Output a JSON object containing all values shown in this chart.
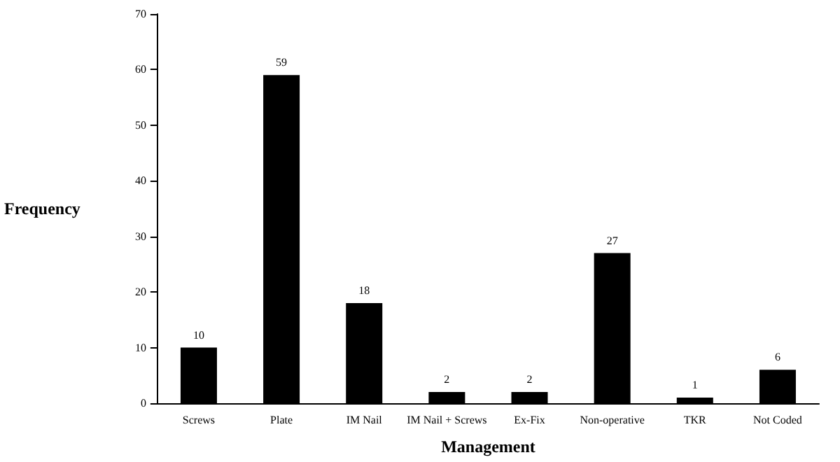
{
  "chart_data": {
    "type": "bar",
    "xlabel": "Management",
    "ylabel": "Frequency",
    "categories": [
      "Screws",
      "Plate",
      "IM Nail",
      "IM Nail + Screws",
      "Ex-Fix",
      "Non-operative",
      "TKR",
      "Not Coded"
    ],
    "values": [
      10,
      59,
      18,
      2,
      2,
      27,
      1,
      6
    ],
    "color": "#000000",
    "ylim": [
      0,
      70
    ],
    "yticks": [
      0,
      10,
      20,
      30,
      40,
      50,
      60,
      70
    ],
    "grid": false,
    "data_labels": true
  }
}
